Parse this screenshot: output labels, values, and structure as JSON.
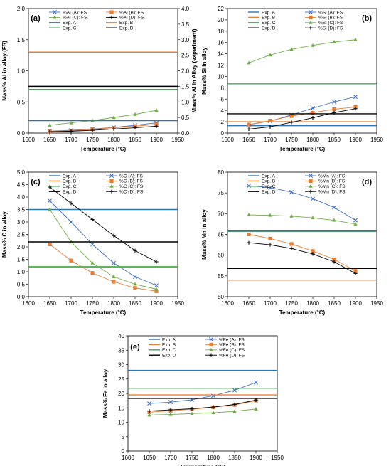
{
  "chart_data": [
    {
      "type": "line",
      "panel_label": "(a)",
      "xlabel": "Temperature (°C)",
      "ylabel": "Mass% Al in alloy (FS)",
      "y2label": "Mass% Al in Alloy (experiment)",
      "xlim": [
        1600,
        1950
      ],
      "ylim": [
        0,
        2.0
      ],
      "y2lim": [
        0,
        4.0
      ],
      "x_ticks": [
        "1600",
        "1650",
        "1700",
        "1750",
        "1800",
        "1850",
        "1900",
        "1950"
      ],
      "y_ticks": [
        "0.0",
        "0.5",
        "1.0",
        "1.5",
        "2.0"
      ],
      "y2_ticks": [
        "0.0",
        "0.5",
        "1.0",
        "1.5",
        "2.0",
        "2.5",
        "3.0",
        "3.5",
        "4.0"
      ],
      "legend_columns": 2,
      "legend_position": "top",
      "series": [
        {
          "name": "%Al (A): FS",
          "kind": "fs",
          "marker": "x",
          "color": "#4472c4",
          "axis": "right",
          "x": [
            1650,
            1700,
            1750,
            1800,
            1850,
            1900
          ],
          "y": [
            0.06,
            0.09,
            0.13,
            0.18,
            0.25,
            0.33
          ]
        },
        {
          "name": "%Al (B): FS",
          "kind": "fs",
          "marker": "square",
          "color": "#ed7d31",
          "axis": "right",
          "x": [
            1650,
            1700,
            1750,
            1800,
            1850,
            1900
          ],
          "y": [
            0.05,
            0.08,
            0.12,
            0.17,
            0.22,
            0.28
          ]
        },
        {
          "name": "%Al (C): FS",
          "kind": "fs",
          "marker": "triangle",
          "color": "#70ad47",
          "axis": "right",
          "x": [
            1650,
            1700,
            1750,
            1800,
            1850,
            1900
          ],
          "y": [
            0.25,
            0.33,
            0.4,
            0.5,
            0.6,
            0.73
          ]
        },
        {
          "name": "%Al (D): FS",
          "kind": "fs",
          "marker": "plus",
          "color": "#000000",
          "axis": "right",
          "x": [
            1650,
            1700,
            1750,
            1800,
            1850,
            1900
          ],
          "y": [
            0.04,
            0.06,
            0.09,
            0.13,
            0.17,
            0.22
          ]
        },
        {
          "name": "Exp. A",
          "kind": "exp",
          "color": "#2e75b6",
          "axis": "left",
          "value": 0.2
        },
        {
          "name": "Exp. B",
          "kind": "exp",
          "color": "#ed7d31",
          "axis": "left",
          "value": 1.3
        },
        {
          "name": "Exp. C",
          "kind": "exp",
          "color": "#2fb24c",
          "axis": "left",
          "value": 0.7
        },
        {
          "name": "Exp. D",
          "kind": "exp",
          "color": "#000000",
          "axis": "left",
          "value": 0.75
        }
      ]
    },
    {
      "type": "line",
      "panel_label": "(b)",
      "xlabel": "Temperature (°C)",
      "ylabel": "Mass% Si in alloy",
      "xlim": [
        1600,
        1950
      ],
      "ylim": [
        0,
        22
      ],
      "x_ticks": [
        "1600",
        "1650",
        "1700",
        "1750",
        "1800",
        "1850",
        "1900",
        "1950"
      ],
      "y_ticks": [
        "0",
        "2",
        "4",
        "6",
        "8",
        "10",
        "12",
        "14",
        "16",
        "18",
        "20",
        "22"
      ],
      "legend_columns": 2,
      "legend_position": "top",
      "series": [
        {
          "name": "Exp. A",
          "kind": "exp",
          "color": "#2e75b6",
          "value": 1.3
        },
        {
          "name": "%Si (A): FS",
          "kind": "fs",
          "marker": "x",
          "color": "#4472c4",
          "x": [
            1650,
            1700,
            1750,
            1800,
            1850,
            1900
          ],
          "y": [
            1.5,
            2.1,
            3.2,
            4.4,
            5.5,
            6.4
          ]
        },
        {
          "name": "Exp. B",
          "kind": "exp",
          "color": "#ed7d31",
          "value": 2.0
        },
        {
          "name": "%Si (B): FS",
          "kind": "fs",
          "marker": "square",
          "color": "#ed7d31",
          "x": [
            1650,
            1700,
            1750,
            1800,
            1850,
            1900
          ],
          "y": [
            1.5,
            2.2,
            3.0,
            3.6,
            4.2,
            4.6
          ]
        },
        {
          "name": "Exp. C",
          "kind": "exp",
          "color": "#2fb24c",
          "value": 8.7
        },
        {
          "name": "%Si (C): FS",
          "kind": "fs",
          "marker": "triangle",
          "color": "#70ad47",
          "x": [
            1650,
            1700,
            1750,
            1800,
            1850,
            1900
          ],
          "y": [
            12.4,
            13.8,
            14.8,
            15.5,
            16.1,
            16.5
          ]
        },
        {
          "name": "Exp. D",
          "kind": "exp",
          "color": "#000000",
          "value": 3.4
        },
        {
          "name": "%Si (D): FS",
          "kind": "fs",
          "marker": "plus",
          "color": "#000000",
          "x": [
            1650,
            1700,
            1750,
            1800,
            1850,
            1900
          ],
          "y": [
            0.7,
            1.1,
            1.9,
            2.7,
            3.6,
            4.3
          ]
        }
      ]
    },
    {
      "type": "line",
      "panel_label": "(c)",
      "xlabel": "Temperature (°C)",
      "ylabel": "Mass% C in alloy",
      "xlim": [
        1600,
        1950
      ],
      "ylim": [
        0,
        5.0
      ],
      "x_ticks": [
        "1600",
        "1650",
        "1700",
        "1750",
        "1800",
        "1850",
        "1900",
        "1950"
      ],
      "y_ticks": [
        "0.0",
        "0.5",
        "1.0",
        "1.5",
        "2.0",
        "2.5",
        "3.0",
        "3.5",
        "4.0",
        "4.5",
        "5.0"
      ],
      "legend_columns": 2,
      "legend_position": "top",
      "series": [
        {
          "name": "Exp. A",
          "kind": "exp",
          "color": "#2e75b6",
          "value": 3.5
        },
        {
          "name": "%C (A): FS",
          "kind": "fs",
          "marker": "x",
          "color": "#4472c4",
          "x": [
            1650,
            1700,
            1750,
            1800,
            1850,
            1900
          ],
          "y": [
            3.85,
            3.0,
            2.1,
            1.35,
            0.8,
            0.45
          ]
        },
        {
          "name": "Exp. B",
          "kind": "exp",
          "color": "#ed7d31",
          "value": 1.2
        },
        {
          "name": "%C (B): FS",
          "kind": "fs",
          "marker": "square",
          "color": "#ed7d31",
          "x": [
            1650,
            1700,
            1750,
            1800,
            1850,
            1900
          ],
          "y": [
            2.1,
            1.45,
            0.95,
            0.6,
            0.35,
            0.22
          ]
        },
        {
          "name": "Exp. C",
          "kind": "exp",
          "color": "#2fb24c",
          "value": 1.2
        },
        {
          "name": "%C (C): FS",
          "kind": "fs",
          "marker": "triangle",
          "color": "#70ad47",
          "x": [
            1650,
            1700,
            1750,
            1800,
            1850,
            1900
          ],
          "y": [
            3.5,
            2.2,
            1.35,
            0.8,
            0.5,
            0.3
          ]
        },
        {
          "name": "Exp. D",
          "kind": "exp",
          "color": "#000000",
          "value": 2.2
        },
        {
          "name": "%C (D): FS",
          "kind": "fs",
          "marker": "plus",
          "color": "#000000",
          "x": [
            1650,
            1700,
            1750,
            1800,
            1850,
            1900
          ],
          "y": [
            4.4,
            3.75,
            3.1,
            2.45,
            1.85,
            1.4
          ]
        }
      ]
    },
    {
      "type": "line",
      "panel_label": "(d)",
      "xlabel": "Temperature (°C)",
      "ylabel": "Mass% Mn in alloy",
      "xlim": [
        1600,
        1950
      ],
      "ylim": [
        50,
        80
      ],
      "x_ticks": [
        "1600",
        "1650",
        "1700",
        "1750",
        "1800",
        "1850",
        "1900",
        "1950"
      ],
      "y_ticks": [
        "50",
        "55",
        "60",
        "65",
        "70",
        "75",
        "80"
      ],
      "legend_columns": 2,
      "legend_position": "top",
      "series": [
        {
          "name": "Exp. A",
          "kind": "exp",
          "color": "#2e75b6",
          "value": 66.0
        },
        {
          "name": "%Mn (A): FS",
          "kind": "fs",
          "marker": "x",
          "color": "#4472c4",
          "x": [
            1650,
            1700,
            1750,
            1800,
            1850,
            1900
          ],
          "y": [
            76.7,
            76.3,
            75.2,
            73.6,
            71.5,
            68.4
          ]
        },
        {
          "name": "Exp. B",
          "kind": "exp",
          "color": "#ed7d31",
          "value": 54.0
        },
        {
          "name": "%Mn (B): FS",
          "kind": "fs",
          "marker": "square",
          "color": "#ed7d31",
          "x": [
            1650,
            1700,
            1750,
            1800,
            1850,
            1900
          ],
          "y": [
            65.0,
            64.0,
            62.7,
            61.0,
            59.0,
            56.2
          ]
        },
        {
          "name": "Exp. C",
          "kind": "exp",
          "color": "#2fb24c",
          "value": 65.7
        },
        {
          "name": "%Mn (C): FS",
          "kind": "fs",
          "marker": "triangle",
          "color": "#70ad47",
          "x": [
            1650,
            1700,
            1750,
            1800,
            1850,
            1900
          ],
          "y": [
            69.7,
            69.6,
            69.4,
            69.0,
            68.4,
            67.5
          ]
        },
        {
          "name": "Exp. D",
          "kind": "exp",
          "color": "#000000",
          "value": 56.8
        },
        {
          "name": "%Mn (D): FS",
          "kind": "fs",
          "marker": "plus",
          "color": "#000000",
          "x": [
            1650,
            1700,
            1750,
            1800,
            1850,
            1900
          ],
          "y": [
            63.0,
            62.5,
            61.6,
            60.3,
            58.4,
            55.6
          ]
        }
      ]
    },
    {
      "type": "line",
      "panel_label": "(e)",
      "xlabel": "Temperature (°C)",
      "ylabel": "Mass% Fe in alloy",
      "xlim": [
        1600,
        1950
      ],
      "ylim": [
        0,
        40
      ],
      "x_ticks": [
        "1600",
        "1650",
        "1700",
        "1750",
        "1800",
        "1850",
        "1900",
        "1950"
      ],
      "y_ticks": [
        "0",
        "5",
        "10",
        "15",
        "20",
        "25",
        "30",
        "35",
        "40"
      ],
      "legend_columns": 2,
      "legend_position": "top",
      "series": [
        {
          "name": "Exp. A",
          "kind": "exp",
          "color": "#2e75b6",
          "value": 28.0
        },
        {
          "name": "%Fe (A): FS",
          "kind": "fs",
          "marker": "x",
          "color": "#4472c4",
          "x": [
            1650,
            1700,
            1750,
            1800,
            1850,
            1900
          ],
          "y": [
            16.5,
            17.0,
            17.8,
            19.2,
            21.1,
            23.8
          ]
        },
        {
          "name": "Exp. B",
          "kind": "exp",
          "color": "#ed7d31",
          "value": 19.5
        },
        {
          "name": "%Fe (B): FS",
          "kind": "fs",
          "marker": "square",
          "color": "#ed7d31",
          "x": [
            1650,
            1700,
            1750,
            1800,
            1850,
            1900
          ],
          "y": [
            13.5,
            14.0,
            14.5,
            15.2,
            16.0,
            17.5
          ]
        },
        {
          "name": "Exp. C",
          "kind": "exp",
          "color": "#2fb24c",
          "value": 21.8
        },
        {
          "name": "%Fe (C): FS",
          "kind": "fs",
          "marker": "triangle",
          "color": "#70ad47",
          "x": [
            1650,
            1700,
            1750,
            1800,
            1850,
            1900
          ],
          "y": [
            12.5,
            12.7,
            13.0,
            13.3,
            13.8,
            14.6
          ]
        },
        {
          "name": "Exp. D",
          "kind": "exp",
          "color": "#000000",
          "value": 18.3
        },
        {
          "name": "%Fe (D): FS",
          "kind": "fs",
          "marker": "plus",
          "color": "#000000",
          "x": [
            1650,
            1700,
            1750,
            1800,
            1850,
            1900
          ],
          "y": [
            13.9,
            14.3,
            14.7,
            15.3,
            16.2,
            17.7
          ]
        }
      ]
    }
  ]
}
